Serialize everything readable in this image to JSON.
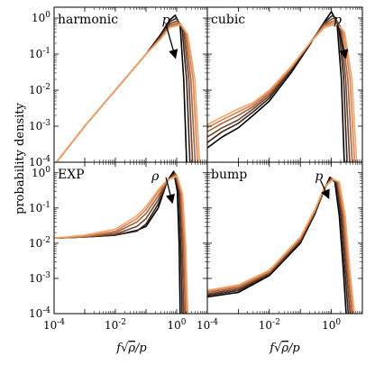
{
  "chart_data": {
    "type": "line",
    "figure": {
      "ylabel": "probability density",
      "xlabel_parts": {
        "f": "f",
        "sqrt": "√",
        "rho": "ρ",
        "over_p": "/p"
      },
      "x_log": true,
      "y_log": true,
      "series_colors": [
        "#000000",
        "#3a231a",
        "#6e4530",
        "#a6633f",
        "#d98450",
        "#f2a469"
      ],
      "param_arrow_note": "curves shift as the parameter increases (dark to light)"
    },
    "panels": [
      {
        "id": "harmonic",
        "label": "harmonic",
        "param_symbol": "p",
        "xlim": [
          0.0001,
          10
        ],
        "ylim": [
          0.0001,
          2
        ],
        "xticks": [
          "10^-4",
          "10^-2",
          "10^0"
        ],
        "yticks": [
          "10^-4",
          "10^-3",
          "10^-2",
          "10^-1",
          "10^0"
        ],
        "show_xticklabels": false,
        "show_yticklabels": true,
        "series": [
          {
            "x": [
              0.00012,
              0.001,
              0.01,
              0.05,
              0.1,
              0.3,
              0.6,
              0.9,
              1.3,
              1.7,
              2.1
            ],
            "y": [
              0.0001,
              0.001,
              0.01,
              0.05,
              0.1,
              0.35,
              0.9,
              1.2,
              0.6,
              0.02,
              0.0001
            ]
          },
          {
            "x": [
              0.00012,
              0.001,
              0.01,
              0.05,
              0.1,
              0.3,
              0.6,
              1.0,
              1.5,
              2.1,
              2.7
            ],
            "y": [
              0.0001,
              0.001,
              0.01,
              0.05,
              0.1,
              0.33,
              0.8,
              1.0,
              0.5,
              0.02,
              0.0001
            ]
          },
          {
            "x": [
              0.00012,
              0.001,
              0.01,
              0.05,
              0.1,
              0.3,
              0.6,
              1.1,
              1.7,
              2.5,
              3.3
            ],
            "y": [
              0.0001,
              0.001,
              0.01,
              0.05,
              0.1,
              0.3,
              0.7,
              0.85,
              0.45,
              0.02,
              0.0001
            ]
          },
          {
            "x": [
              0.00012,
              0.001,
              0.01,
              0.05,
              0.1,
              0.3,
              0.6,
              1.2,
              1.9,
              2.9,
              4.0
            ],
            "y": [
              0.0001,
              0.001,
              0.01,
              0.05,
              0.1,
              0.28,
              0.62,
              0.75,
              0.4,
              0.02,
              0.0001
            ]
          },
          {
            "x": [
              0.00012,
              0.001,
              0.01,
              0.05,
              0.1,
              0.3,
              0.6,
              1.3,
              2.1,
              3.4,
              4.8
            ],
            "y": [
              0.0001,
              0.001,
              0.01,
              0.05,
              0.1,
              0.27,
              0.58,
              0.7,
              0.38,
              0.02,
              0.0001
            ]
          },
          {
            "x": [
              0.00012,
              0.001,
              0.01,
              0.05,
              0.1,
              0.3,
              0.6,
              1.4,
              2.3,
              3.9,
              5.6
            ],
            "y": [
              0.0001,
              0.001,
              0.01,
              0.05,
              0.1,
              0.26,
              0.55,
              0.65,
              0.35,
              0.02,
              0.0001
            ]
          }
        ]
      },
      {
        "id": "cubic",
        "label": "cubic",
        "param_symbol": "p",
        "xlim": [
          0.0001,
          10
        ],
        "ylim": [
          0.0001,
          2
        ],
        "xticks": [
          "10^-4",
          "10^-2",
          "10^0"
        ],
        "yticks": [
          "10^-4",
          "10^-3",
          "10^-2",
          "10^-1",
          "10^0"
        ],
        "show_xticklabels": false,
        "show_yticklabels": false,
        "series": [
          {
            "x": [
              0.0001,
              0.0003,
              0.001,
              0.003,
              0.01,
              0.05,
              0.2,
              0.6,
              1.0,
              1.5,
              2.1,
              2.6
            ],
            "y": [
              0.00025,
              0.0005,
              0.0009,
              0.002,
              0.005,
              0.03,
              0.18,
              0.8,
              1.5,
              0.8,
              0.02,
              0.0001
            ]
          },
          {
            "x": [
              0.0001,
              0.0003,
              0.001,
              0.003,
              0.01,
              0.05,
              0.2,
              0.6,
              1.1,
              1.7,
              2.5,
              3.2
            ],
            "y": [
              0.00035,
              0.0007,
              0.0012,
              0.0025,
              0.006,
              0.035,
              0.19,
              0.75,
              1.2,
              0.7,
              0.02,
              0.0001
            ]
          },
          {
            "x": [
              0.0001,
              0.0003,
              0.001,
              0.003,
              0.01,
              0.05,
              0.2,
              0.6,
              1.2,
              1.9,
              2.9,
              3.9
            ],
            "y": [
              0.0005,
              0.0009,
              0.0015,
              0.003,
              0.007,
              0.038,
              0.2,
              0.7,
              1.0,
              0.6,
              0.02,
              0.0001
            ]
          },
          {
            "x": [
              0.0001,
              0.0003,
              0.001,
              0.003,
              0.01,
              0.05,
              0.2,
              0.6,
              1.3,
              2.1,
              3.4,
              4.7
            ],
            "y": [
              0.0007,
              0.0012,
              0.002,
              0.0035,
              0.008,
              0.04,
              0.2,
              0.65,
              0.85,
              0.5,
              0.02,
              0.0001
            ]
          },
          {
            "x": [
              0.0001,
              0.0003,
              0.001,
              0.003,
              0.01,
              0.05,
              0.2,
              0.6,
              1.4,
              2.4,
              4.0,
              5.6
            ],
            "y": [
              0.0009,
              0.0015,
              0.0025,
              0.004,
              0.009,
              0.042,
              0.2,
              0.6,
              0.75,
              0.45,
              0.02,
              0.0001
            ]
          },
          {
            "x": [
              0.0001,
              0.0003,
              0.001,
              0.003,
              0.01,
              0.05,
              0.2,
              0.6,
              1.5,
              2.7,
              4.6,
              6.5
            ],
            "y": [
              0.0011,
              0.0018,
              0.003,
              0.0045,
              0.01,
              0.045,
              0.2,
              0.55,
              0.68,
              0.4,
              0.02,
              0.0001
            ]
          }
        ]
      },
      {
        "id": "exp",
        "label": "EXP",
        "param_symbol": "ρ",
        "xlim": [
          0.0001,
          10
        ],
        "ylim": [
          0.0001,
          2
        ],
        "xticks": [
          "10^-4",
          "10^-2",
          "10^0"
        ],
        "yticks": [
          "10^-4",
          "10^-3",
          "10^-2",
          "10^-1",
          "10^0"
        ],
        "show_xticklabels": true,
        "show_yticklabels": true,
        "series": [
          {
            "x": [
              0.0001,
              0.001,
              0.01,
              0.05,
              0.1,
              0.25,
              0.5,
              0.8,
              1.05,
              1.2,
              1.3
            ],
            "y": [
              0.014,
              0.015,
              0.017,
              0.023,
              0.03,
              0.1,
              0.6,
              1.1,
              0.3,
              0.01,
              0.0001
            ]
          },
          {
            "x": [
              0.0001,
              0.001,
              0.01,
              0.05,
              0.1,
              0.25,
              0.5,
              0.85,
              1.15,
              1.35,
              1.5
            ],
            "y": [
              0.014,
              0.015,
              0.017,
              0.022,
              0.035,
              0.13,
              0.6,
              1.0,
              0.3,
              0.01,
              0.0001
            ]
          },
          {
            "x": [
              0.0001,
              0.001,
              0.01,
              0.05,
              0.1,
              0.25,
              0.5,
              0.9,
              1.25,
              1.5,
              1.7
            ],
            "y": [
              0.014,
              0.015,
              0.018,
              0.03,
              0.05,
              0.17,
              0.6,
              0.95,
              0.28,
              0.01,
              0.0001
            ]
          },
          {
            "x": [
              0.0001,
              0.001,
              0.01,
              0.05,
              0.1,
              0.25,
              0.5,
              0.95,
              1.35,
              1.65,
              1.9
            ],
            "y": [
              0.014,
              0.015,
              0.02,
              0.04,
              0.07,
              0.22,
              0.6,
              0.9,
              0.28,
              0.01,
              0.0001
            ]
          },
          {
            "x": [
              0.0001,
              0.001,
              0.01,
              0.05,
              0.1,
              0.25,
              0.5,
              1.0,
              1.45,
              1.8,
              2.1
            ],
            "y": [
              0.014,
              0.016,
              0.022,
              0.05,
              0.09,
              0.28,
              0.62,
              0.85,
              0.26,
              0.01,
              0.0001
            ]
          },
          {
            "x": [
              0.0001,
              0.001,
              0.01,
              0.05,
              0.1,
              0.25,
              0.5,
              1.05,
              1.55,
              1.95,
              2.3
            ],
            "y": [
              0.014,
              0.017,
              0.025,
              0.06,
              0.11,
              0.33,
              0.63,
              0.8,
              0.25,
              0.01,
              0.0001
            ]
          }
        ]
      },
      {
        "id": "bump",
        "label": "bump",
        "param_symbol": "p",
        "xlim": [
          0.0001,
          10
        ],
        "ylim": [
          0.0001,
          2
        ],
        "xticks": [
          "10^-4",
          "10^-2",
          "10^0"
        ],
        "yticks": [
          "10^-4",
          "10^-3",
          "10^-2",
          "10^-1",
          "10^0"
        ],
        "show_xticklabels": true,
        "show_yticklabels": false,
        "series": [
          {
            "x": [
              0.0001,
              0.001,
              0.01,
              0.1,
              0.3,
              0.6,
              0.9,
              1.3,
              1.8,
              2.4,
              3.0
            ],
            "y": [
              0.0003,
              0.0004,
              0.0012,
              0.01,
              0.07,
              0.35,
              0.75,
              0.55,
              0.06,
              0.002,
              0.0001
            ]
          },
          {
            "x": [
              0.0001,
              0.001,
              0.01,
              0.1,
              0.3,
              0.6,
              0.95,
              1.4,
              2.0,
              2.7,
              3.5
            ],
            "y": [
              0.00033,
              0.00045,
              0.0013,
              0.011,
              0.075,
              0.36,
              0.72,
              0.55,
              0.06,
              0.002,
              0.0001
            ]
          },
          {
            "x": [
              0.0001,
              0.001,
              0.01,
              0.1,
              0.3,
              0.6,
              1.0,
              1.5,
              2.2,
              3.0,
              4.0
            ],
            "y": [
              0.00036,
              0.0005,
              0.0014,
              0.012,
              0.08,
              0.37,
              0.7,
              0.55,
              0.06,
              0.002,
              0.0001
            ]
          },
          {
            "x": [
              0.0001,
              0.001,
              0.01,
              0.1,
              0.3,
              0.6,
              1.05,
              1.6,
              2.4,
              3.3,
              4.5
            ],
            "y": [
              0.0004,
              0.00055,
              0.0015,
              0.013,
              0.085,
              0.38,
              0.68,
              0.55,
              0.06,
              0.002,
              0.0001
            ]
          },
          {
            "x": [
              0.0001,
              0.001,
              0.01,
              0.1,
              0.3,
              0.6,
              1.1,
              1.7,
              2.6,
              3.6,
              5.0
            ],
            "y": [
              0.00043,
              0.0006,
              0.0016,
              0.014,
              0.09,
              0.39,
              0.66,
              0.55,
              0.06,
              0.002,
              0.0001
            ]
          },
          {
            "x": [
              0.0001,
              0.001,
              0.01,
              0.1,
              0.3,
              0.6,
              1.15,
              1.8,
              2.8,
              3.9,
              5.5
            ],
            "y": [
              0.00046,
              0.00065,
              0.0017,
              0.015,
              0.095,
              0.4,
              0.64,
              0.55,
              0.06,
              0.002,
              0.0001
            ]
          }
        ]
      }
    ]
  }
}
